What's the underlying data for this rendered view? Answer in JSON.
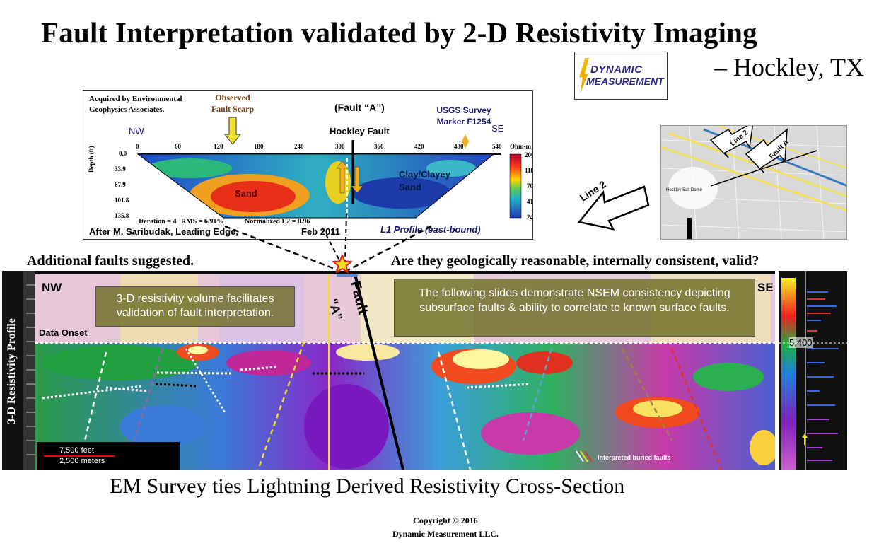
{
  "title": "Fault Interpretation validated by 2-D Resistivity Imaging",
  "subtitle": "– Hockley, TX",
  "logo": {
    "line1": "DYNAMIC",
    "line2": "MEASUREMENT"
  },
  "inset": {
    "acquired": "Acquired by Environmental Geophysics Associates.",
    "observed": "Observed Fault Scarp",
    "fault_a": "(Fault “A”)",
    "hockley_fault": "Hockley Fault",
    "usgs": "USGS Survey Marker F1254",
    "nw": "NW",
    "se": "SE",
    "x_ticks": [
      "0",
      "60",
      "120",
      "180",
      "240",
      "300",
      "360",
      "420",
      "480",
      "540"
    ],
    "depth_ticks": [
      "0.0",
      "33.9",
      "67.9",
      "101.8",
      "135.8"
    ],
    "depth_label": "Depth (ft)",
    "colorbar_unit": "Ohm-m",
    "colorbar_values": [
      "200",
      "118",
      "70",
      "41",
      "24"
    ],
    "sand": "Sand",
    "clay": "Clay/Clayey Sand",
    "iteration": "Iteration = 4",
    "rms": "RMS = 6.91%",
    "normalized": "Normalized L2 = 0.96",
    "after": "After M. Saribudak, Leading Edge,",
    "feb": "Feb 2011",
    "profile": "L1 Profile (east-bound)"
  },
  "map": {
    "salt_dome": "Hockley Salt Dome",
    "line2": "Line 2",
    "fault_a": "Fault A"
  },
  "line2_arrow": "Line 2",
  "headings": {
    "left": "Additional faults suggested.",
    "right": "Are they geologically reasonable, internally consistent, valid?"
  },
  "xsec": {
    "nw": "NW",
    "se": "SE",
    "data_onset": "Data Onset",
    "callout1": "3-D resistivity volume facilitates validation of fault interpretation.",
    "callout2": "The following  slides demonstrate NSEM consistency depicting subsurface faults & ability to correlate to known surface faults.",
    "scale_feet": "7,500 feet",
    "scale_meters": "2,500 meters",
    "buried": "Interpreted buried faults",
    "fault_label": "Fault",
    "fault_letter": "“A”"
  },
  "left_vertical": "3-D Resistivity Profile",
  "depth_marker": "5,400",
  "caption": "EM Survey ties Lightning Derived Resistivity Cross-Section",
  "copyright_line1": "Copyright  © 2016",
  "copyright_line2": "Dynamic Measurement LLC."
}
